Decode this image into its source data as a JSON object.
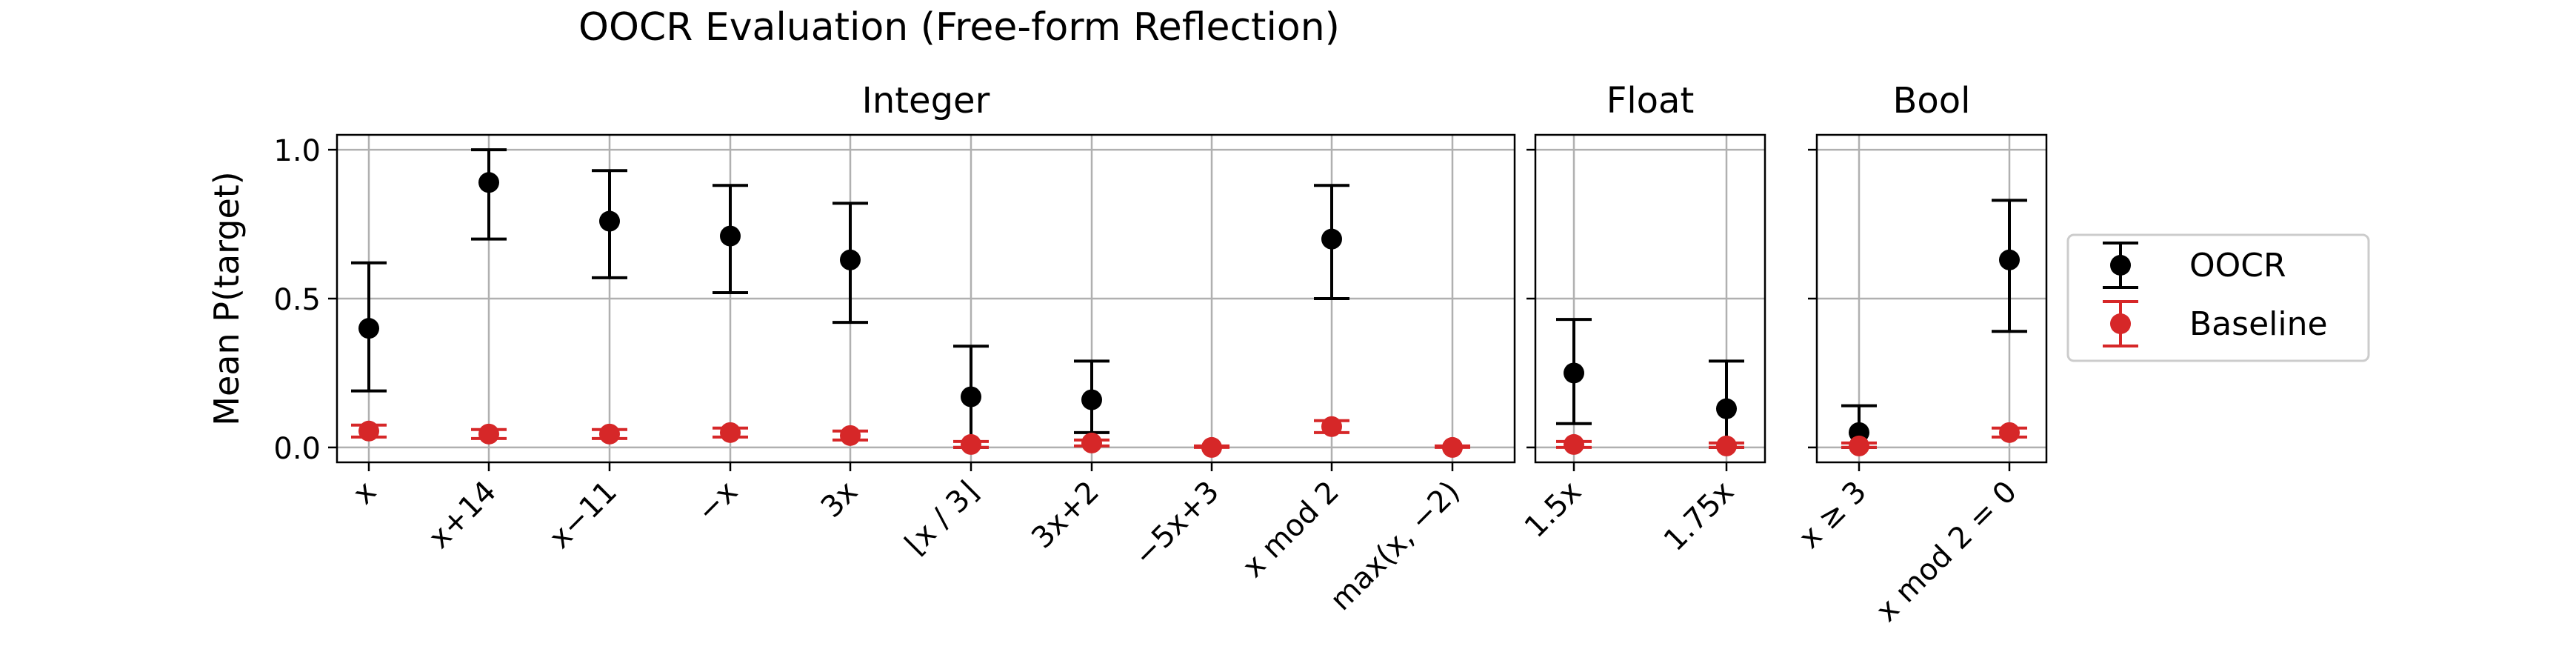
{
  "chart_data": {
    "type": "scatter",
    "title": "OOCR Evaluation (Free-form Reflection)",
    "ylabel": "Mean P(target)",
    "ylim": [
      -0.05,
      1.05
    ],
    "yticks": [
      "0.0",
      "0.5",
      "1.0"
    ],
    "ytick_values": [
      0.0,
      0.5,
      1.0
    ],
    "grid": true,
    "legend": {
      "position": "right",
      "entries": [
        "OOCR",
        "Baseline"
      ]
    },
    "colors": {
      "oocr": "#000000",
      "baseline": "#d62728"
    },
    "panels": [
      {
        "title": "Integer",
        "categories": [
          "x",
          "x+14",
          "x−11",
          "−x",
          "3x",
          "⌊x / 3⌋",
          "3x+2",
          "−5x+3",
          "x mod 2",
          "max(x, −2)"
        ],
        "series": [
          {
            "name": "OOCR",
            "values": [
              0.4,
              0.89,
              0.76,
              0.71,
              0.63,
              0.17,
              0.16,
              null,
              0.7,
              null
            ],
            "err_low": [
              0.19,
              0.7,
              0.57,
              0.52,
              0.42,
              0.0,
              0.05,
              null,
              0.5,
              null
            ],
            "err_high": [
              0.62,
              1.0,
              0.93,
              0.88,
              0.82,
              0.34,
              0.29,
              null,
              0.88,
              null
            ]
          },
          {
            "name": "Baseline",
            "values": [
              0.055,
              0.045,
              0.045,
              0.05,
              0.04,
              0.01,
              0.015,
              0.0,
              0.07,
              0.0
            ],
            "err_low": [
              0.035,
              0.03,
              0.03,
              0.035,
              0.025,
              0.0,
              0.005,
              0.0,
              0.05,
              0.0
            ],
            "err_high": [
              0.075,
              0.06,
              0.06,
              0.065,
              0.055,
              0.02,
              0.025,
              0.005,
              0.09,
              0.005
            ]
          }
        ]
      },
      {
        "title": "Float",
        "categories": [
          "1.5x",
          "1.75x"
        ],
        "series": [
          {
            "name": "OOCR",
            "values": [
              0.25,
              0.13
            ],
            "err_low": [
              0.08,
              0.0
            ],
            "err_high": [
              0.43,
              0.29
            ]
          },
          {
            "name": "Baseline",
            "values": [
              0.01,
              0.005
            ],
            "err_low": [
              0.0,
              0.0
            ],
            "err_high": [
              0.02,
              0.015
            ]
          }
        ]
      },
      {
        "title": "Bool",
        "categories": [
          "x ≥ 3",
          "x mod 2 = 0"
        ],
        "series": [
          {
            "name": "OOCR",
            "values": [
              0.05,
              0.63
            ],
            "err_low": [
              0.0,
              0.39
            ],
            "err_high": [
              0.14,
              0.83
            ]
          },
          {
            "name": "Baseline",
            "values": [
              0.005,
              0.05
            ],
            "err_low": [
              0.0,
              0.035
            ],
            "err_high": [
              0.015,
              0.065
            ]
          }
        ]
      }
    ]
  }
}
